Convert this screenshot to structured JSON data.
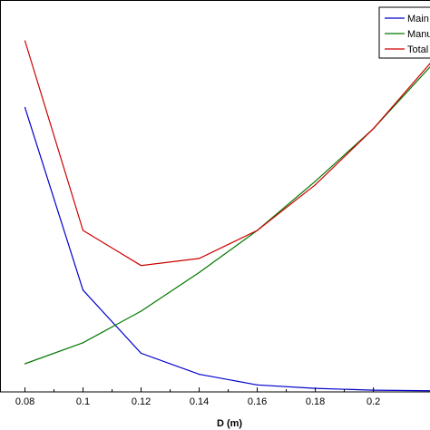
{
  "chart_data": {
    "type": "line",
    "title": "",
    "xlabel": "D (m)",
    "ylabel": "",
    "xlim": [
      0.0714,
      0.2195
    ],
    "ylim": [
      0,
      100
    ],
    "grid": false,
    "legend_position": "top-right",
    "x_ticks": [
      "0.08",
      "0.1",
      "0.12",
      "0.14",
      "0.16",
      "0.18",
      "0.2"
    ],
    "series": [
      {
        "name": "Main",
        "color": "#0000cc",
        "x": [
          0.08,
          0.1,
          0.12,
          0.14,
          0.16,
          0.18,
          0.2,
          0.22
        ],
        "y": [
          81.0,
          29.0,
          11.0,
          5.0,
          2.0,
          1.0,
          0.5,
          0.3
        ]
      },
      {
        "name": "Manu",
        "color": "#007700",
        "x": [
          0.08,
          0.1,
          0.12,
          0.14,
          0.16,
          0.18,
          0.2,
          0.22
        ],
        "y": [
          8.0,
          14.0,
          23.0,
          34.0,
          46.0,
          60.0,
          75.0,
          93.0
        ]
      },
      {
        "name": "Total",
        "color": "#cc0000",
        "x": [
          0.08,
          0.1,
          0.12,
          0.14,
          0.16,
          0.18,
          0.2,
          0.22
        ],
        "y": [
          100.0,
          46.0,
          36.0,
          38.0,
          46.0,
          59.0,
          75.0,
          94.0
        ]
      }
    ]
  }
}
